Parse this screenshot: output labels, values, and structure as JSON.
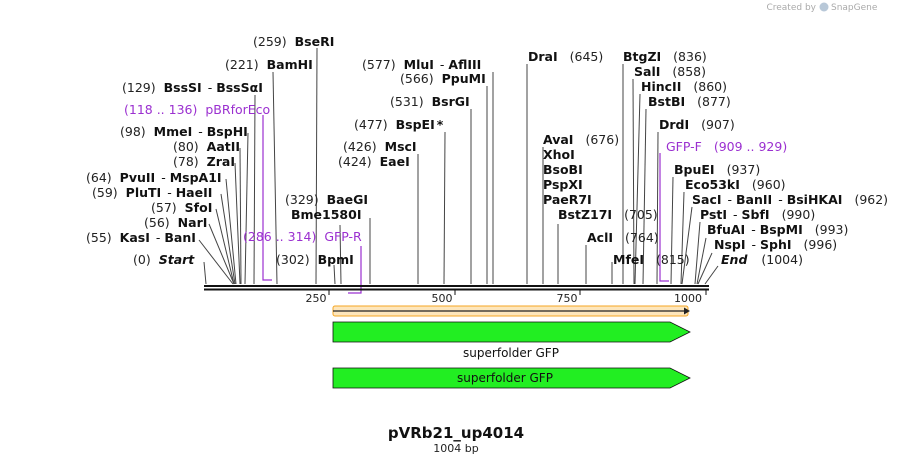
{
  "credit": {
    "created_by": "Created by",
    "brand": "SnapGene"
  },
  "map": {
    "title": "pVRb21_up4014",
    "length_label": "1004 bp",
    "length": 1004,
    "ticks": [
      "250",
      "500",
      "750",
      "1000"
    ]
  },
  "ends": {
    "start": {
      "pos": "(0)",
      "name": "Start"
    },
    "end": {
      "name": "End",
      "pos": "(1004)"
    }
  },
  "sites": [
    {
      "pos": "(55)",
      "name": "KasI",
      "name2": "BanI"
    },
    {
      "pos": "(56)",
      "name": "NarI"
    },
    {
      "pos": "(57)",
      "name": "SfoI"
    },
    {
      "pos": "(59)",
      "name": "PluTI",
      "name2": "HaeII"
    },
    {
      "pos": "(64)",
      "name": "PvuII",
      "name2": "MspA1I"
    },
    {
      "pos": "(78)",
      "name": "ZraI"
    },
    {
      "pos": "(80)",
      "name": "AatII"
    },
    {
      "pos": "(98)",
      "name": "MmeI",
      "name2": "BspHI"
    },
    {
      "pos": "(129)",
      "name": "BssSI",
      "name2": "BssSαI"
    },
    {
      "pos": "(221)",
      "name": "BamHI"
    },
    {
      "pos": "(259)",
      "name": "BseRI"
    },
    {
      "pos": "(302)",
      "name": "BpmI"
    },
    {
      "names": "Bme1580I"
    },
    {
      "pos": "(329)",
      "name": "BaeGI"
    },
    {
      "pos": "(424)",
      "name": "EaeI"
    },
    {
      "pos": "(426)",
      "name": "MscI"
    },
    {
      "pos": "(477)",
      "name": "BspEI",
      "suffix": "*"
    },
    {
      "pos": "(531)",
      "name": "BsrGI"
    },
    {
      "pos": "(566)",
      "name": "PpuMI"
    },
    {
      "pos": "(577)",
      "name": "MluI",
      "name2": "AflIII"
    },
    {
      "name": "DraI",
      "pos": "(645)"
    },
    {
      "name": "AvaI",
      "pos": "(676)"
    },
    {
      "names": "XhoI"
    },
    {
      "names": "BsoBI"
    },
    {
      "names": "PspXI"
    },
    {
      "names": "PaeR7I"
    },
    {
      "name": "BstZ17I",
      "pos": "(705)"
    },
    {
      "name": "AclI",
      "pos": "(764)"
    },
    {
      "name": "MfeI",
      "pos": "(815)"
    },
    {
      "name": "BtgZI",
      "pos": "(836)"
    },
    {
      "name": "SalI",
      "pos": "(858)"
    },
    {
      "name": "HincII",
      "pos": "(860)"
    },
    {
      "name": "BstBI",
      "pos": "(877)"
    },
    {
      "name": "DrdI",
      "pos": "(907)"
    },
    {
      "name": "BpuEI",
      "pos": "(937)"
    },
    {
      "name": "Eco53kI",
      "pos": "(960)"
    },
    {
      "name": "SacI",
      "name2": "BanII",
      "name3": "BsiHKAI",
      "pos": "(962)"
    },
    {
      "name": "PstI",
      "name2": "SbfI",
      "pos": "(990)"
    },
    {
      "name": "BfuAI",
      "name2": "BspMI",
      "pos": "(993)"
    },
    {
      "name": "NspI",
      "name2": "SphI",
      "pos": "(996)"
    }
  ],
  "primers": [
    {
      "range": "(118 .. 136)",
      "name": "pBRforEco"
    },
    {
      "range": "(286 .. 314)",
      "name": "GFP-R"
    },
    {
      "name": "GFP-F",
      "range": "(909 .. 929)"
    }
  ],
  "features": {
    "orf_color": "#f5a623",
    "gfp_color": "#22ee22",
    "gfp_label": "superfolder GFP",
    "gfp_inner_label": "superfolder GFP"
  },
  "colors": {
    "primer": "#9b30d0",
    "backbone": "#111111"
  }
}
